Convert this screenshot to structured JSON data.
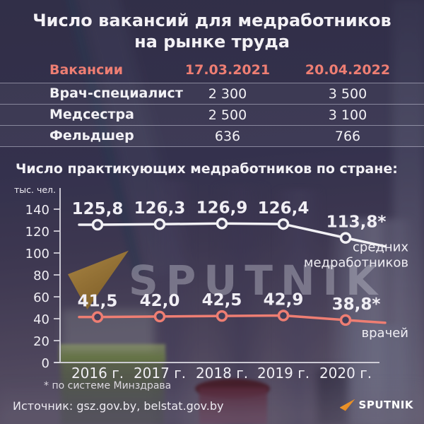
{
  "title": {
    "line1": "Число вакансий для медработников",
    "line2": "на рынке труда"
  },
  "vacancies_table": {
    "headers": [
      "Вакансии",
      "17.03.2021",
      "20.04.2022"
    ],
    "rows": [
      {
        "label": "Врач-специалист",
        "v1": "2 300",
        "v2": "3 500"
      },
      {
        "label": "Медсестра",
        "v1": "2 500",
        "v2": "3 100"
      },
      {
        "label": "Фельдшер",
        "v1": "636",
        "v2": "766"
      }
    ]
  },
  "chart_heading": "Число  практикующих медработников по стране:",
  "chart_data": {
    "type": "line",
    "title": "Число практикующих медработников по стране:",
    "y_unit": "тыс. чел.",
    "x": [
      "2016 г.",
      "2017 г.",
      "2018 г.",
      "2019 г.",
      "2020 г."
    ],
    "yticks": [
      140,
      120,
      100,
      80,
      60,
      40,
      20,
      0
    ],
    "ylim": [
      0,
      145
    ],
    "grid": false,
    "legend_position": "right-of-line-ends",
    "series": [
      {
        "name": "средних медработников",
        "legend_lines": [
          "средних",
          "медработников"
        ],
        "color": "#f2f1f5",
        "values": [
          125.8,
          126.3,
          126.9,
          126.4,
          113.8
        ],
        "labels": [
          "125,8",
          "126,3",
          "126,9",
          "126,4",
          "113,8*"
        ]
      },
      {
        "name": "врачей",
        "legend_lines": [
          "врачей"
        ],
        "color": "#ee7e73",
        "values": [
          41.5,
          42.0,
          42.5,
          42.9,
          38.8
        ],
        "labels": [
          "41,5",
          "42,0",
          "42,5",
          "42,9",
          "38,8*"
        ]
      }
    ],
    "footnote": "* по системе Минздрава"
  },
  "footnote": "* по системе Минздрава",
  "source": "Источник: gsz.gov.by, belstat.gov.by",
  "watermark": {
    "text": "SPUTNIK"
  },
  "logo": {
    "text": "SPUTNIK"
  },
  "colors": {
    "accent": "#ee7e73",
    "text": "#f2f1f5",
    "axis": "#d9d7e0",
    "brand_orange": "#f0932b",
    "background": "#34324a"
  }
}
